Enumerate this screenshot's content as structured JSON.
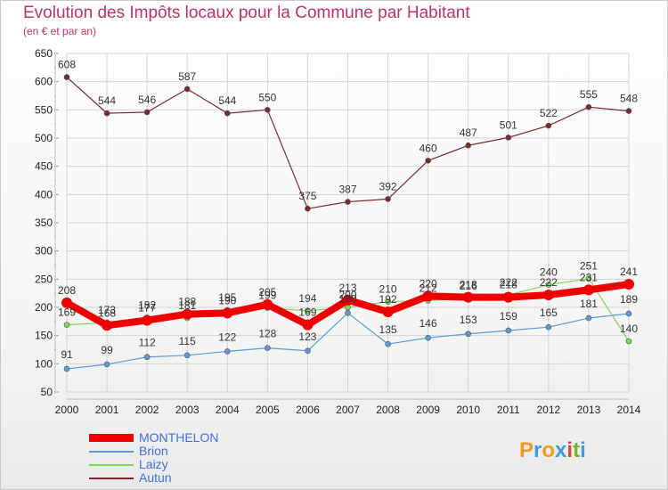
{
  "title": "Evolution des Impôts locaux pour la Commune par Habitant",
  "subtitle": "(en € et par an)",
  "brand": {
    "letters": [
      "P",
      "r",
      "o",
      "x",
      "i",
      "t",
      "i"
    ],
    "colors": [
      "#f39a1e",
      "#3d9be0",
      "#f39a1e",
      "#3d9be0",
      "#e0443c",
      "#7ab51d",
      "#3d9be0"
    ]
  },
  "chart_data": {
    "type": "line",
    "x": [
      "2000",
      "2001",
      "2002",
      "2003",
      "2004",
      "2005",
      "2006",
      "2007",
      "2008",
      "2009",
      "2010",
      "2011",
      "2012",
      "2013",
      "2014"
    ],
    "ylim": [
      50,
      650
    ],
    "yticks": [
      "650",
      "600",
      "550",
      "500",
      "450",
      "400",
      "350",
      "300",
      "250",
      "200",
      "150",
      "100",
      "50"
    ],
    "grid": true,
    "legend_position": "bottom-left",
    "series": [
      {
        "name": "MONTHELON",
        "color": "#ee0000",
        "values": [
          208,
          168,
          177,
          188,
          190,
          205,
          169,
          213,
          192,
          220,
          218,
          218,
          222,
          231,
          241
        ],
        "labels": [
          "208",
          "168",
          "177",
          "188",
          "190",
          "205",
          "169",
          "213",
          "192",
          "220",
          "218",
          "218",
          "222",
          "231",
          "241"
        ]
      },
      {
        "name": "Brion",
        "color": "#5b9bd5",
        "values": [
          91,
          99,
          112,
          115,
          122,
          128,
          123,
          190,
          135,
          146,
          153,
          159,
          165,
          181,
          189
        ],
        "labels": [
          "91",
          "99",
          "112",
          "115",
          "122",
          "128",
          "123",
          "190",
          "135",
          "146",
          "153",
          "159",
          "165",
          "181",
          "189"
        ]
      },
      {
        "name": "Laizy",
        "color": "#7ed957",
        "values": [
          169,
          173,
          182,
          181,
          195,
          199,
          194,
          200,
          210,
          212,
          216,
          222,
          240,
          251,
          140
        ],
        "labels": [
          "169",
          "173",
          "182",
          "181",
          "195",
          "199",
          "194",
          "200",
          "210",
          "212",
          "216",
          "222",
          "240",
          "251",
          "140"
        ]
      },
      {
        "name": "Autun",
        "color": "#7a2a2a",
        "values": [
          608,
          544,
          546,
          587,
          544,
          550,
          375,
          387,
          392,
          460,
          487,
          501,
          522,
          555,
          548
        ],
        "labels": [
          "608",
          "544",
          "546",
          "587",
          "544",
          "550",
          "375",
          "387",
          "392",
          "460",
          "487",
          "501",
          "522",
          "555",
          "548"
        ]
      }
    ]
  }
}
